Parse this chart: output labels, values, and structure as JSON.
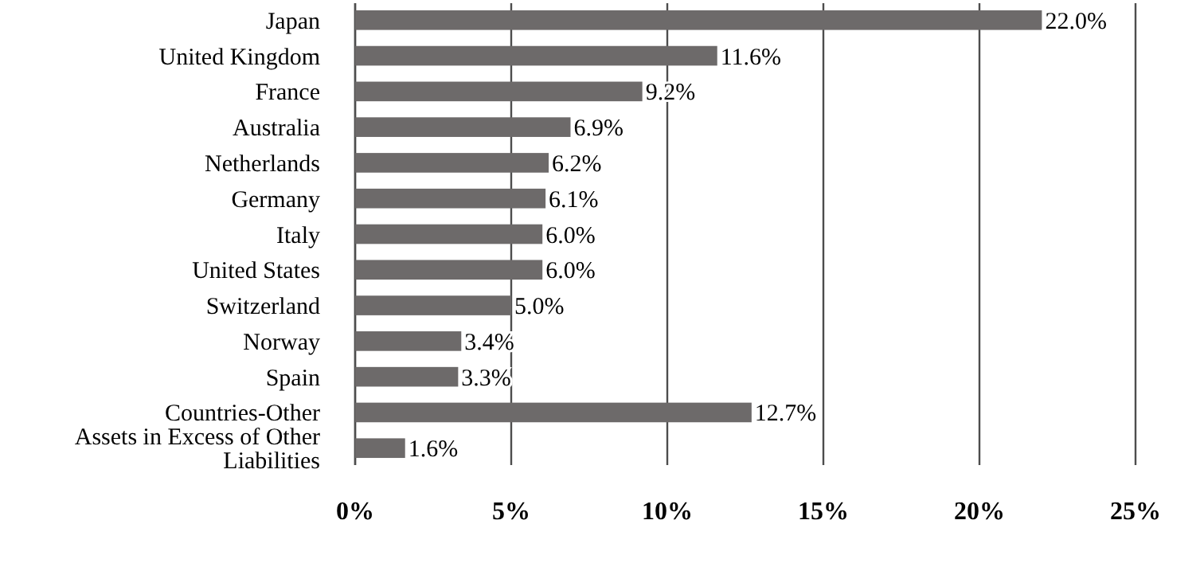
{
  "chart_data": {
    "type": "bar",
    "orientation": "horizontal",
    "categories": [
      "Japan",
      "United Kingdom",
      "France",
      "Australia",
      "Netherlands",
      "Germany",
      "Italy",
      "United States",
      "Switzerland",
      "Norway",
      "Spain",
      "Countries-Other",
      "Assets in Excess of Other Liabilities"
    ],
    "values": [
      22.0,
      11.6,
      9.2,
      6.9,
      6.2,
      6.1,
      6.0,
      6.0,
      5.0,
      3.4,
      3.3,
      12.7,
      1.6
    ],
    "value_labels": [
      "22.0%",
      "11.6%",
      "9.2%",
      "6.9%",
      "6.2%",
      "6.1%",
      "6.0%",
      "6.0%",
      "5.0%",
      "3.4%",
      "3.3%",
      "12.7%",
      "1.6%"
    ],
    "color": "#6d6a6a",
    "xlim": [
      0,
      25
    ],
    "xticks": [
      {
        "value": 0,
        "label": "0%"
      },
      {
        "value": 5,
        "label": "5%"
      },
      {
        "value": 10,
        "label": "10%"
      },
      {
        "value": 15,
        "label": "15%"
      },
      {
        "value": 20,
        "label": "20%"
      },
      {
        "value": 25,
        "label": "25%"
      }
    ],
    "grid": "x"
  }
}
